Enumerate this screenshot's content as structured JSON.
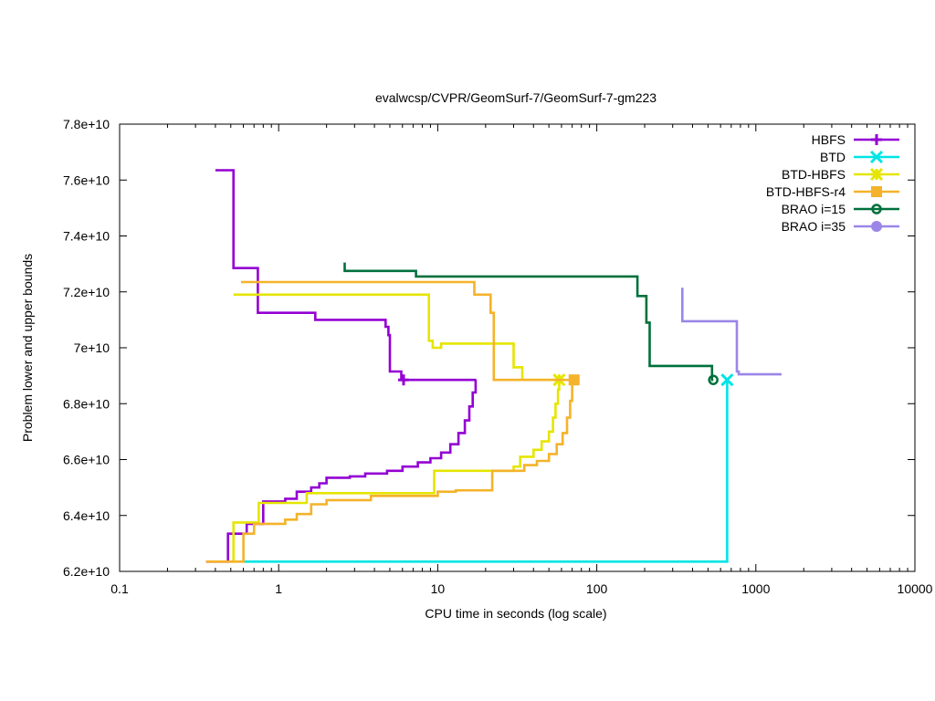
{
  "chart_data": {
    "type": "line",
    "title": "evalwcsp/CVPR/GeomSurf-7/GeomSurf-7-gm223",
    "xlabel": "CPU time in seconds (log scale)",
    "ylabel": "Problem lower and upper bounds",
    "xscale": "log",
    "xlim": [
      0.1,
      10000
    ],
    "ylim": [
      62000000000,
      78000000000
    ],
    "grid": false,
    "legend_position": "top-right",
    "x_ticks": [
      {
        "value": 0.1,
        "label": "0.1"
      },
      {
        "value": 1,
        "label": "1"
      },
      {
        "value": 10,
        "label": "10"
      },
      {
        "value": 100,
        "label": "100"
      },
      {
        "value": 1000,
        "label": "1000"
      },
      {
        "value": 10000,
        "label": "10000"
      }
    ],
    "y_ticks": [
      {
        "value": 62000000000,
        "label": "6.2e+10"
      },
      {
        "value": 64000000000,
        "label": "6.4e+10"
      },
      {
        "value": 66000000000,
        "label": "6.6e+10"
      },
      {
        "value": 68000000000,
        "label": "6.8e+10"
      },
      {
        "value": 70000000000,
        "label": "7e+10"
      },
      {
        "value": 72000000000,
        "label": "7.2e+10"
      },
      {
        "value": 74000000000,
        "label": "7.4e+10"
      },
      {
        "value": 76000000000,
        "label": "7.6e+10"
      },
      {
        "value": 78000000000,
        "label": "7.8e+10"
      }
    ],
    "series": [
      {
        "name": "HBFS",
        "color": "#9400d3",
        "marker": "plus",
        "final_point": [
          6.1,
          68850000000
        ],
        "upper": [
          [
            0.4,
            76350000000
          ],
          [
            0.52,
            76350000000
          ],
          [
            0.52,
            72850000000
          ],
          [
            0.74,
            72850000000
          ],
          [
            0.74,
            71250000000
          ],
          [
            1.7,
            71250000000
          ],
          [
            1.7,
            71000000000
          ],
          [
            2.5,
            71000000000
          ],
          [
            4.7,
            71000000000
          ],
          [
            4.7,
            70750000000
          ],
          [
            4.9,
            70750000000
          ],
          [
            4.9,
            70450000000
          ],
          [
            5.0,
            70450000000
          ],
          [
            5.0,
            69150000000
          ],
          [
            5.9,
            69150000000
          ],
          [
            5.9,
            68850000000
          ],
          [
            17.5,
            68850000000
          ]
        ],
        "lower": [
          [
            0.35,
            62350000000
          ],
          [
            0.48,
            62350000000
          ],
          [
            0.48,
            63350000000
          ],
          [
            0.63,
            63350000000
          ],
          [
            0.63,
            63700000000
          ],
          [
            0.8,
            63700000000
          ],
          [
            0.8,
            64500000000
          ],
          [
            1.1,
            64500000000
          ],
          [
            1.1,
            64600000000
          ],
          [
            1.3,
            64600000000
          ],
          [
            1.3,
            64850000000
          ],
          [
            1.6,
            64850000000
          ],
          [
            1.6,
            65000000000
          ],
          [
            1.8,
            65000000000
          ],
          [
            1.8,
            65150000000
          ],
          [
            2.0,
            65150000000
          ],
          [
            2.0,
            65350000000
          ],
          [
            2.8,
            65350000000
          ],
          [
            2.8,
            65400000000
          ],
          [
            3.5,
            65400000000
          ],
          [
            3.5,
            65500000000
          ],
          [
            4.8,
            65500000000
          ],
          [
            4.8,
            65600000000
          ],
          [
            6.0,
            65600000000
          ],
          [
            6.0,
            65750000000
          ],
          [
            7.5,
            65750000000
          ],
          [
            7.5,
            65900000000
          ],
          [
            9.0,
            65900000000
          ],
          [
            9.0,
            66050000000
          ],
          [
            10.5,
            66050000000
          ],
          [
            10.5,
            66250000000
          ],
          [
            12.0,
            66250000000
          ],
          [
            12.0,
            66550000000
          ],
          [
            13.5,
            66550000000
          ],
          [
            13.5,
            66950000000
          ],
          [
            14.8,
            66950000000
          ],
          [
            14.8,
            67400000000
          ],
          [
            15.8,
            67400000000
          ],
          [
            15.8,
            67900000000
          ],
          [
            16.6,
            67900000000
          ],
          [
            16.6,
            68400000000
          ],
          [
            17.3,
            68400000000
          ],
          [
            17.3,
            68850000000
          ]
        ]
      },
      {
        "name": "BTD",
        "color": "#00e5e5",
        "marker": "cross",
        "final_point": [
          660,
          68850000000
        ],
        "upper": [],
        "lower": [
          [
            0.6,
            62350000000
          ],
          [
            660,
            62350000000
          ],
          [
            660,
            68850000000
          ]
        ]
      },
      {
        "name": "BTD-HBFS",
        "color": "#e5e500",
        "marker": "star",
        "final_point": [
          58,
          68850000000
        ],
        "upper": [
          [
            0.52,
            71900000000
          ],
          [
            8.8,
            71900000000
          ],
          [
            8.8,
            70250000000
          ],
          [
            9.3,
            70250000000
          ],
          [
            9.3,
            70000000000
          ],
          [
            10.5,
            70000000000
          ],
          [
            10.5,
            70150000000
          ],
          [
            30,
            70150000000
          ],
          [
            30,
            69300000000
          ],
          [
            34,
            69300000000
          ],
          [
            34,
            68850000000
          ],
          [
            58,
            68850000000
          ]
        ],
        "lower": [
          [
            0.5,
            62350000000
          ],
          [
            0.52,
            62350000000
          ],
          [
            0.52,
            63750000000
          ],
          [
            0.75,
            63750000000
          ],
          [
            0.75,
            64450000000
          ],
          [
            1.5,
            64450000000
          ],
          [
            1.5,
            64800000000
          ],
          [
            9.5,
            64800000000
          ],
          [
            9.5,
            65600000000
          ],
          [
            30,
            65600000000
          ],
          [
            30,
            65750000000
          ],
          [
            33,
            65750000000
          ],
          [
            33,
            66100000000
          ],
          [
            40,
            66100000000
          ],
          [
            40,
            66350000000
          ],
          [
            45,
            66350000000
          ],
          [
            45,
            66650000000
          ],
          [
            50,
            66650000000
          ],
          [
            50,
            67000000000
          ],
          [
            53,
            67000000000
          ],
          [
            53,
            67500000000
          ],
          [
            55,
            67500000000
          ],
          [
            55,
            68000000000
          ],
          [
            57,
            68000000000
          ],
          [
            57,
            68500000000
          ],
          [
            58,
            68500000000
          ],
          [
            58,
            68850000000
          ]
        ]
      },
      {
        "name": "BTD-HBFS-r4",
        "color": "#f4b32a",
        "marker": "square",
        "final_point": [
          72,
          68850000000
        ],
        "upper": [
          [
            0.58,
            72350000000
          ],
          [
            17,
            72350000000
          ],
          [
            17,
            71900000000
          ],
          [
            21.5,
            71900000000
          ],
          [
            21.5,
            71250000000
          ],
          [
            22.5,
            71250000000
          ],
          [
            22.5,
            68850000000
          ],
          [
            72,
            68850000000
          ]
        ],
        "lower": [
          [
            0.35,
            62350000000
          ],
          [
            0.6,
            62350000000
          ],
          [
            0.6,
            63350000000
          ],
          [
            0.7,
            63350000000
          ],
          [
            0.7,
            63700000000
          ],
          [
            1.1,
            63700000000
          ],
          [
            1.1,
            63850000000
          ],
          [
            1.3,
            63850000000
          ],
          [
            1.3,
            64050000000
          ],
          [
            1.6,
            64050000000
          ],
          [
            1.6,
            64400000000
          ],
          [
            2.0,
            64400000000
          ],
          [
            2.0,
            64550000000
          ],
          [
            3.8,
            64550000000
          ],
          [
            3.8,
            64700000000
          ],
          [
            10,
            64700000000
          ],
          [
            10,
            64850000000
          ],
          [
            13,
            64850000000
          ],
          [
            13,
            64900000000
          ],
          [
            22,
            64900000000
          ],
          [
            22,
            65600000000
          ],
          [
            35,
            65600000000
          ],
          [
            35,
            65800000000
          ],
          [
            42,
            65800000000
          ],
          [
            42,
            65950000000
          ],
          [
            50,
            65950000000
          ],
          [
            50,
            66200000000
          ],
          [
            56,
            66200000000
          ],
          [
            56,
            66550000000
          ],
          [
            61,
            66550000000
          ],
          [
            61,
            66950000000
          ],
          [
            65,
            66950000000
          ],
          [
            65,
            67500000000
          ],
          [
            68,
            67500000000
          ],
          [
            68,
            68100000000
          ],
          [
            70,
            68100000000
          ],
          [
            70,
            68850000000
          ],
          [
            72,
            68850000000
          ]
        ]
      },
      {
        "name": "BRAO i=15",
        "color": "#00703c",
        "marker": "circle-open",
        "final_point": [
          540,
          68850000000
        ],
        "upper": [
          [
            2.6,
            73050000000
          ],
          [
            2.6,
            72750000000
          ],
          [
            7.3,
            72750000000
          ],
          [
            7.3,
            72550000000
          ],
          [
            180,
            72550000000
          ],
          [
            180,
            71850000000
          ],
          [
            205,
            71850000000
          ],
          [
            205,
            70900000000
          ],
          [
            215,
            70900000000
          ],
          [
            215,
            69350000000
          ],
          [
            530,
            69350000000
          ],
          [
            530,
            68850000000
          ],
          [
            540,
            68850000000
          ]
        ],
        "lower": []
      },
      {
        "name": "BRAO i=35",
        "color": "#9b86e8",
        "marker": "circle-filled",
        "final_point": null,
        "upper": [
          [
            345,
            72150000000
          ],
          [
            345,
            70950000000
          ],
          [
            760,
            70950000000
          ],
          [
            760,
            69150000000
          ],
          [
            780,
            69150000000
          ],
          [
            780,
            69050000000
          ],
          [
            1450,
            69050000000
          ]
        ],
        "lower": []
      }
    ]
  }
}
